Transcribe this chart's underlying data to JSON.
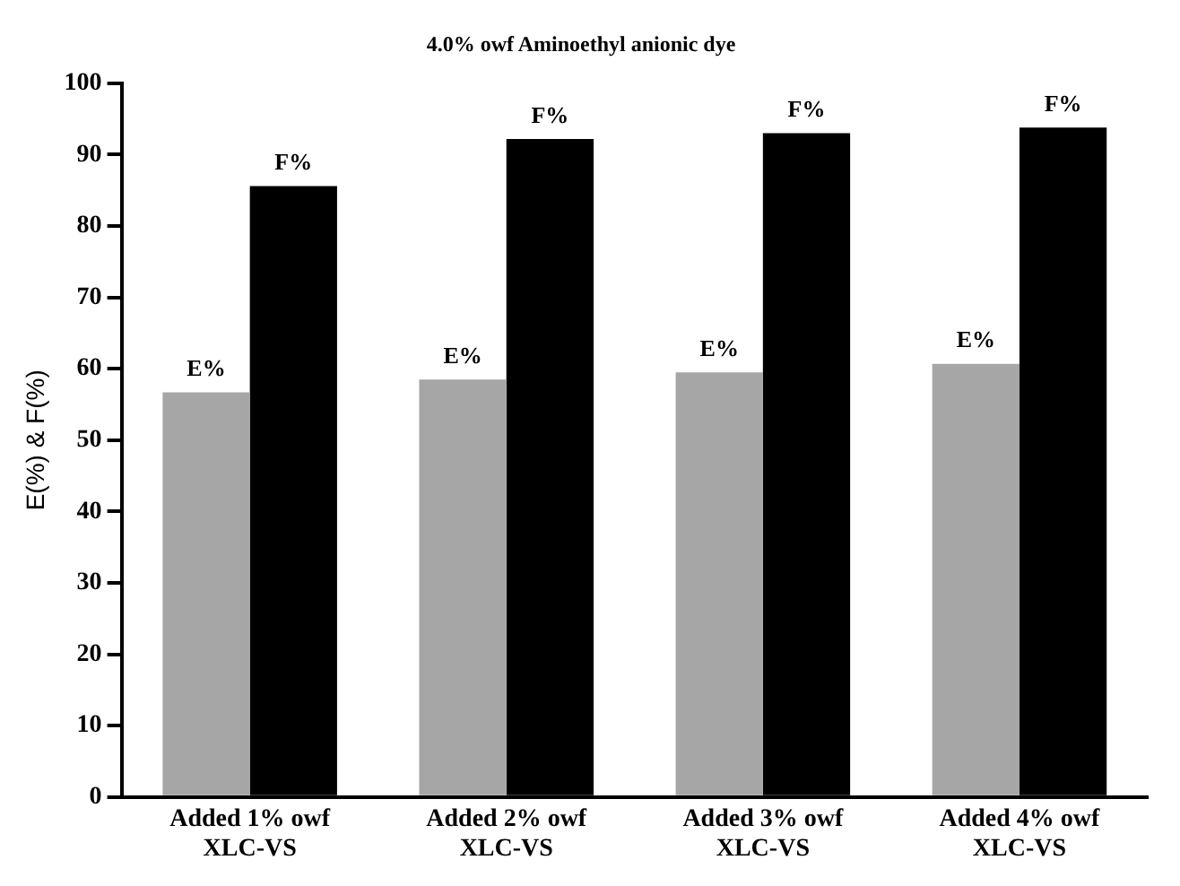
{
  "chart_data": {
    "type": "bar",
    "title": "4.0% owf Aminoethyl anionic dye",
    "ylabel": "E(%) & F(%)",
    "categories": [
      "Added 1% owf XLC-VS",
      "Added 2% owf XLC-VS",
      "Added 3% owf XLC-VS",
      "Added 4% owf XLC-VS"
    ],
    "series": [
      {
        "name": "E%",
        "color": "#a6a6a6",
        "values": [
          56.7,
          58.5,
          59.5,
          60.7
        ]
      },
      {
        "name": "F%",
        "color": "#000000",
        "values": [
          85.6,
          92.2,
          93.0,
          93.8
        ]
      }
    ],
    "ylim": [
      0,
      100
    ],
    "yticks": [
      0,
      10,
      20,
      30,
      40,
      50,
      60,
      70,
      80,
      90,
      100
    ],
    "grid": false,
    "legend": false
  }
}
